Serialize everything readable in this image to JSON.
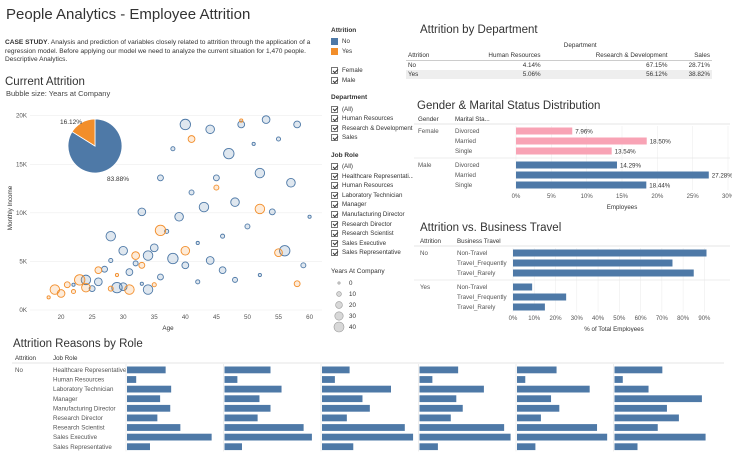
{
  "dashboard": {
    "title": "People Analytics - Employee Attrition",
    "case_study_label": "CASE STUDY",
    "case_study_text": ". Analysis and prediction of variables closely related to attrition through the application of a regression model. Before applying our model we need to analyze the current situation for 1,470 people. Descriptive Analytics."
  },
  "colors": {
    "no": "#4e79a7",
    "yes": "#f28e2b",
    "female": "#f8a3b5"
  },
  "filters": {
    "attrition": {
      "title": "Attrition",
      "items": [
        "No",
        "Yes"
      ]
    },
    "gender": {
      "items": [
        "Female",
        "Male"
      ]
    },
    "department": {
      "title": "Department",
      "items": [
        "(All)",
        "Human Resources",
        "Research & Development",
        "Sales"
      ]
    },
    "job_role": {
      "title": "Job Role",
      "items": [
        "(All)",
        "Healthcare Representati...",
        "Human Resources",
        "Laboratory Technician",
        "Manager",
        "Manufacturing Director",
        "Research Director",
        "Research Scientist",
        "Sales Executive",
        "Sales Representative"
      ]
    },
    "years_at_company": {
      "title": "Years At Company",
      "items": [
        "0",
        "10",
        "20",
        "30",
        "40"
      ]
    }
  },
  "current_attrition": {
    "title": "Current Attrition",
    "subtitle": "Bubble size: Years at Company"
  },
  "attrition_by_department": {
    "title": "Attrition by Department",
    "group_header": "Department",
    "row_header": "Attrition",
    "columns": [
      "Human Resources",
      "Research & Development",
      "Sales"
    ],
    "rows": [
      {
        "label": "No",
        "values": [
          "4.14%",
          "67.15%",
          "28.71%"
        ]
      },
      {
        "label": "Yes",
        "values": [
          "5.06%",
          "56.12%",
          "38.82%"
        ]
      }
    ]
  },
  "chart_data": [
    {
      "type": "pie",
      "slices": [
        {
          "name": "No",
          "value": 83.88,
          "label": "83.88%"
        },
        {
          "name": "Yes",
          "value": 16.12,
          "label": "16.12%"
        }
      ]
    },
    {
      "type": "scatter",
      "xlabel": "Age",
      "ylabel": "Monthly Income",
      "xlim": [
        15,
        62
      ],
      "ylim": [
        0,
        21000
      ],
      "xticks": [
        20,
        25,
        30,
        35,
        40,
        45,
        50,
        55,
        60
      ],
      "yticks": [
        0,
        5000,
        10000,
        15000,
        20000
      ],
      "ytick_labels": [
        "0K",
        "5K",
        "10K",
        "15K",
        "20K"
      ],
      "series": [
        {
          "name": "No",
          "points": [
            [
              22,
              2600
            ],
            [
              24,
              3100
            ],
            [
              26,
              2900
            ],
            [
              27,
              4200
            ],
            [
              28,
              5100
            ],
            [
              29,
              2300
            ],
            [
              30,
              6100
            ],
            [
              31,
              3900
            ],
            [
              32,
              4800
            ],
            [
              33,
              2700
            ],
            [
              34,
              5600
            ],
            [
              35,
              6400
            ],
            [
              36,
              3400
            ],
            [
              37,
              8100
            ],
            [
              38,
              5300
            ],
            [
              39,
              9600
            ],
            [
              40,
              4600
            ],
            [
              41,
              12100
            ],
            [
              42,
              6900
            ],
            [
              43,
              10600
            ],
            [
              44,
              5100
            ],
            [
              45,
              13600
            ],
            [
              46,
              7600
            ],
            [
              47,
              16100
            ],
            [
              48,
              11100
            ],
            [
              49,
              19100
            ],
            [
              50,
              8600
            ],
            [
              51,
              17100
            ],
            [
              52,
              14100
            ],
            [
              53,
              19600
            ],
            [
              54,
              10100
            ],
            [
              55,
              17600
            ],
            [
              56,
              6100
            ],
            [
              57,
              13100
            ],
            [
              58,
              19100
            ],
            [
              59,
              4600
            ],
            [
              60,
              9600
            ],
            [
              28,
              7600
            ],
            [
              33,
              10100
            ],
            [
              36,
              13600
            ],
            [
              38,
              16600
            ],
            [
              40,
              19100
            ],
            [
              44,
              18600
            ],
            [
              46,
              4100
            ],
            [
              48,
              3100
            ],
            [
              52,
              3600
            ],
            [
              34,
              2100
            ],
            [
              30,
              2400
            ],
            [
              25,
              2200
            ],
            [
              42,
              2900
            ]
          ]
        },
        {
          "name": "Yes",
          "points": [
            [
              18,
              1300
            ],
            [
              19,
              2100
            ],
            [
              20,
              1700
            ],
            [
              21,
              2600
            ],
            [
              22,
              1900
            ],
            [
              23,
              3100
            ],
            [
              24,
              2300
            ],
            [
              26,
              4100
            ],
            [
              28,
              2200
            ],
            [
              29,
              3600
            ],
            [
              31,
              2100
            ],
            [
              32,
              5600
            ],
            [
              33,
              4600
            ],
            [
              35,
              2600
            ],
            [
              36,
              8200
            ],
            [
              40,
              6100
            ],
            [
              41,
              17600
            ],
            [
              45,
              12600
            ],
            [
              49,
              19500
            ],
            [
              52,
              10400
            ],
            [
              55,
              5900
            ],
            [
              58,
              2700
            ]
          ]
        }
      ]
    },
    {
      "type": "bar",
      "title": "Gender & Marital Status Distribution",
      "xlabel": "Employees",
      "xlim": [
        0,
        30
      ],
      "xticks": [
        "0%",
        "5%",
        "10%",
        "15%",
        "20%",
        "25%",
        "30%"
      ],
      "column_headers": [
        "Gender",
        "Marital Sta..."
      ],
      "groups": [
        {
          "name": "Female",
          "color": "#f8a3b5",
          "categories": [
            "Divorced",
            "Married",
            "Single"
          ],
          "values": [
            7.96,
            18.5,
            13.54
          ],
          "labels": [
            "7.96%",
            "18.50%",
            "13.54%"
          ]
        },
        {
          "name": "Male",
          "color": "#4e79a7",
          "categories": [
            "Divorced",
            "Married",
            "Single"
          ],
          "values": [
            14.29,
            27.28,
            18.44
          ],
          "labels": [
            "14.29%",
            "27.28%",
            "18.44%"
          ]
        }
      ]
    },
    {
      "type": "bar",
      "title": "Attrition vs. Business Travel",
      "xlabel": "% of Total Employees",
      "xlim": [
        0,
        95
      ],
      "xticks": [
        "0%",
        "10%",
        "20%",
        "30%",
        "40%",
        "50%",
        "60%",
        "70%",
        "80%",
        "90%"
      ],
      "column_headers": [
        "Attrition",
        "Business Travel"
      ],
      "groups": [
        {
          "name": "No",
          "categories": [
            "Non-Travel",
            "Travel_Frequently",
            "Travel_Rarely"
          ],
          "values": [
            91,
            75,
            85
          ]
        },
        {
          "name": "Yes",
          "categories": [
            "Non-Travel",
            "Travel_Frequently",
            "Travel_Rarely"
          ],
          "values": [
            9,
            25,
            15
          ]
        }
      ]
    },
    {
      "type": "bar",
      "title": "Attrition Reasons by Role",
      "column_headers": [
        "Attrition",
        "Job Role"
      ],
      "group": "No",
      "roles": [
        "Healthcare Representative",
        "Human Resources",
        "Laboratory Technician",
        "Manager",
        "Manufacturing Director",
        "Research Director",
        "Research Scientist",
        "Sales Executive",
        "Sales Representative"
      ],
      "panels": [
        [
          0.42,
          0.1,
          0.48,
          0.36,
          0.47,
          0.33,
          0.58,
          0.92,
          0.25
        ],
        [
          0.5,
          0.14,
          0.62,
          0.38,
          0.5,
          0.36,
          0.86,
          0.95,
          0.19
        ],
        [
          0.3,
          0.14,
          0.75,
          0.44,
          0.52,
          0.27,
          0.9,
          0.99,
          0.34
        ],
        [
          0.42,
          0.14,
          0.7,
          0.4,
          0.47,
          0.34,
          0.92,
          0.99,
          0.2
        ],
        [
          0.43,
          0.09,
          0.79,
          0.37,
          0.46,
          0.26,
          0.87,
          0.98,
          0.2
        ],
        [
          0.52,
          0.09,
          0.37,
          0.95,
          0.57,
          0.7,
          0.47,
          0.99,
          0.25
        ]
      ]
    }
  ]
}
